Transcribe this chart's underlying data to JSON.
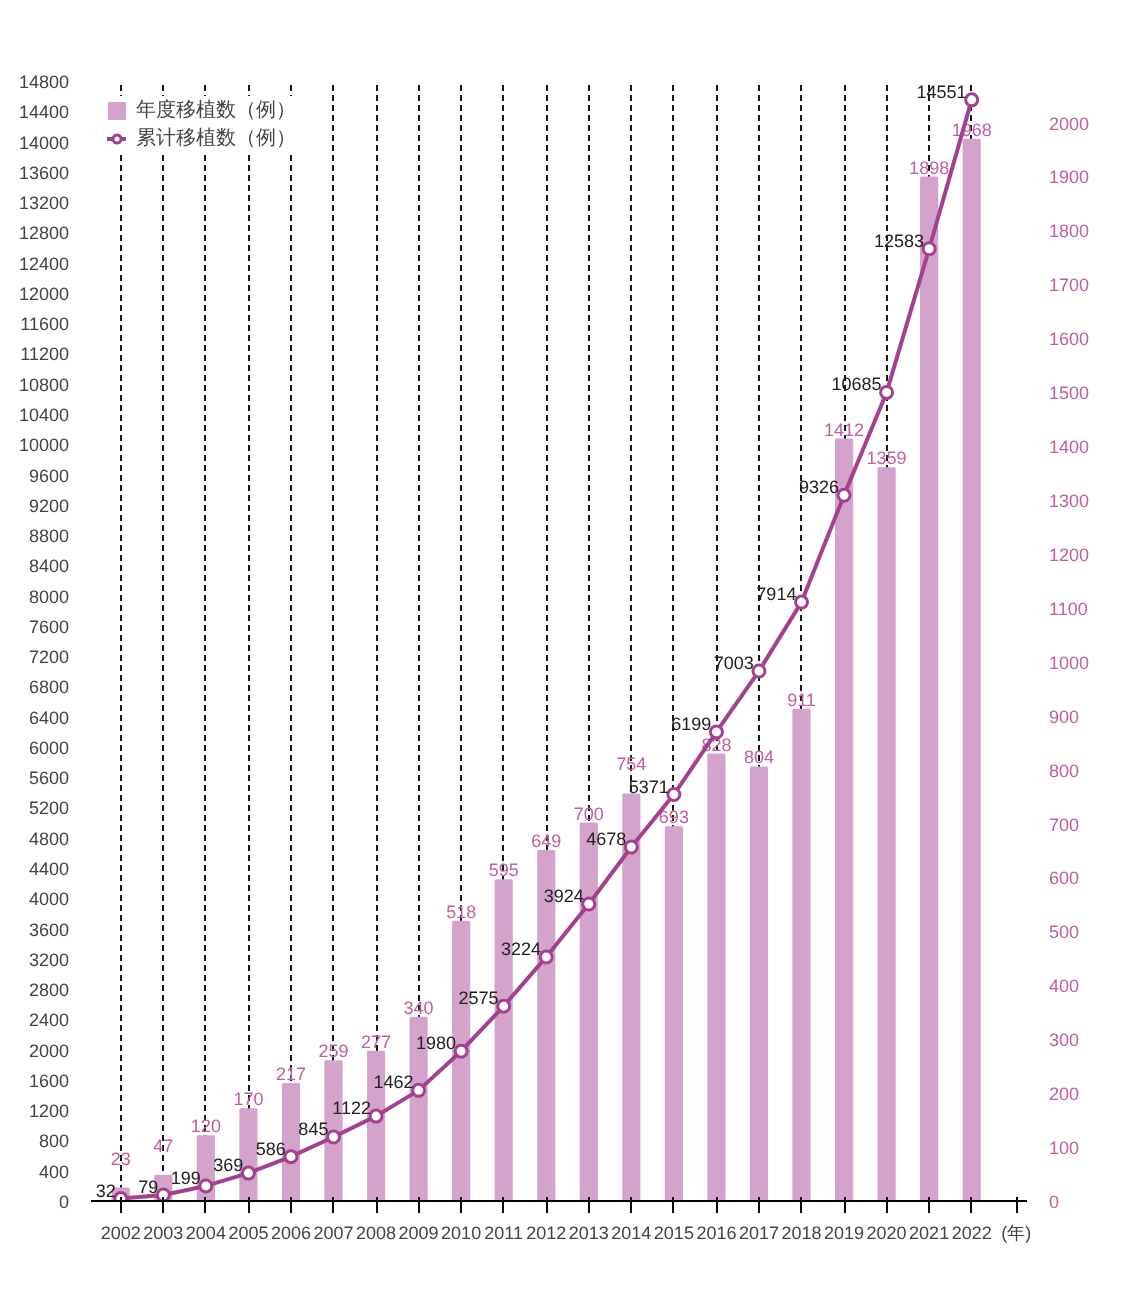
{
  "chart_data": {
    "type": "bar",
    "xlabel": "(年)",
    "categories": [
      "2002",
      "2003",
      "2004",
      "2005",
      "2006",
      "2007",
      "2008",
      "2009",
      "2010",
      "2011",
      "2012",
      "2013",
      "2014",
      "2015",
      "2016",
      "2017",
      "2018",
      "2019",
      "2020",
      "2021",
      "2022"
    ],
    "series": [
      {
        "name": "年度移植数（例）",
        "axis": "y2",
        "color": "#d4a3cb",
        "values": [
          23,
          47,
          120,
          170,
          217,
          259,
          277,
          340,
          518,
          595,
          649,
          700,
          754,
          693,
          828,
          804,
          911,
          1412,
          1359,
          1898,
          1968
        ]
      },
      {
        "name": "累计移植数（例）",
        "type": "line",
        "axis": "y",
        "color": "#a3418f",
        "marker": "circle",
        "values": [
          32,
          79,
          199,
          369,
          586,
          845,
          1122,
          1462,
          1980,
          2575,
          3224,
          3924,
          4678,
          5371,
          6199,
          7003,
          7914,
          9326,
          10685,
          12583,
          14551
        ]
      }
    ],
    "ylim": [
      0,
      14800
    ],
    "yticks": [
      0,
      400,
      800,
      1200,
      1600,
      2000,
      2400,
      2800,
      3200,
      3600,
      4000,
      4400,
      4800,
      5200,
      5600,
      6000,
      6400,
      6800,
      7200,
      7600,
      8000,
      8400,
      8800,
      9200,
      9600,
      10000,
      10400,
      10800,
      11200,
      11600,
      12000,
      12400,
      12800,
      13200,
      13600,
      14000,
      14400,
      14800
    ],
    "y2lim": [
      0,
      2077
    ],
    "y2ticks": [
      0,
      100,
      200,
      300,
      400,
      500,
      600,
      700,
      800,
      900,
      1000,
      1100,
      1200,
      1300,
      1400,
      1500,
      1600,
      1700,
      1800,
      1900,
      2000
    ],
    "grid": "x",
    "legend": "top left",
    "data_labels": true
  }
}
